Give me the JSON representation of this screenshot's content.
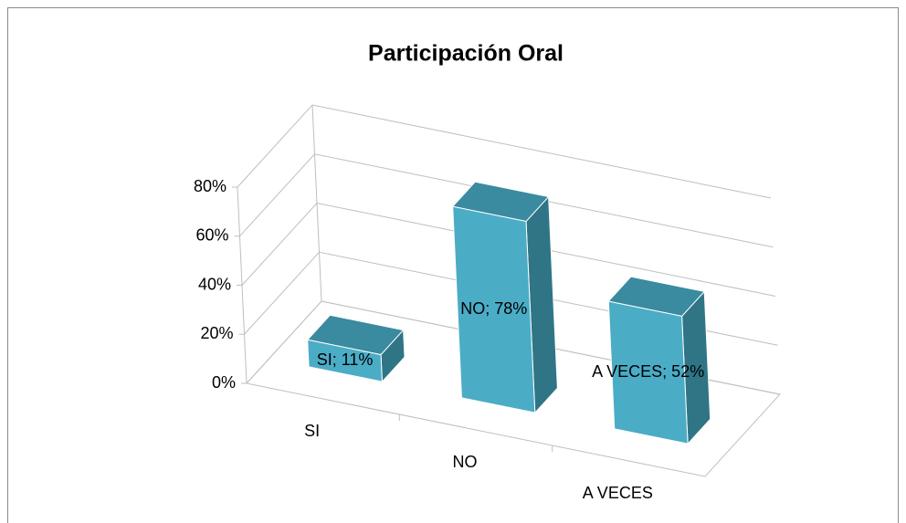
{
  "chart_data": {
    "type": "bar3d",
    "title": "Participación  Oral",
    "categories": [
      "SI",
      "NO",
      "A VECES"
    ],
    "values": [
      11,
      78,
      52
    ],
    "value_labels": [
      "SI; 11%",
      "NO; 78%",
      "A VECES; 52%"
    ],
    "color": "#4bacc6",
    "ylim": [
      0,
      80
    ],
    "yticks": [
      {
        "value": 0,
        "label": "0%"
      },
      {
        "value": 20,
        "label": "20%"
      },
      {
        "value": 40,
        "label": "40%"
      },
      {
        "value": 60,
        "label": "60%"
      },
      {
        "value": 80,
        "label": "80%"
      }
    ],
    "grid": true
  }
}
